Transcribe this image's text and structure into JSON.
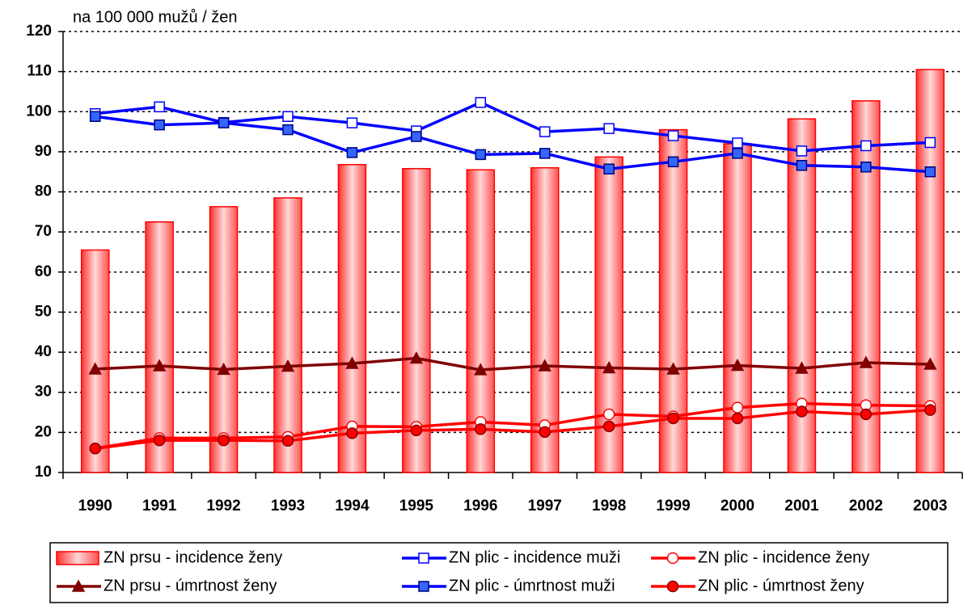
{
  "chart_data": {
    "type": "bar",
    "y_label": "na 100 000 mužů / žen",
    "categories": [
      "1990",
      "1991",
      "1992",
      "1993",
      "1994",
      "1995",
      "1996",
      "1997",
      "1998",
      "1999",
      "2000",
      "2001",
      "2002",
      "2003"
    ],
    "ylim": [
      10,
      120
    ],
    "yticks": [
      10,
      20,
      30,
      40,
      50,
      60,
      70,
      80,
      90,
      100,
      110,
      120
    ],
    "grid": true,
    "series": [
      {
        "name": "ZN prsu - incidence ženy",
        "type": "bar",
        "color": "#ff0000",
        "values": [
          65.5,
          72.5,
          76.3,
          78.5,
          86.8,
          85.8,
          85.5,
          86,
          88.7,
          95.5,
          92,
          98.2,
          102.7,
          110.5
        ]
      },
      {
        "name": "ZN plic - incidence muži",
        "type": "line",
        "color": "#0000ff",
        "marker": "square-open",
        "values": [
          99.5,
          101.2,
          97.3,
          98.8,
          97.2,
          95.2,
          102.3,
          95,
          95.8,
          94,
          92.2,
          90.2,
          91.5,
          92.3
        ]
      },
      {
        "name": "ZN plic - incidence ženy",
        "type": "line",
        "color": "#ff0000",
        "marker": "circle-open",
        "values": [
          16,
          18.6,
          18.6,
          18.9,
          21.5,
          21.4,
          22.6,
          21.8,
          24.5,
          24,
          26.2,
          27.2,
          26.8,
          26.6
        ]
      },
      {
        "name": "ZN prsu - úmrtnost ženy",
        "type": "line",
        "color": "#800000",
        "marker": "triangle",
        "values": [
          35.8,
          36.6,
          35.7,
          36.5,
          37.2,
          38.5,
          35.6,
          36.6,
          36.1,
          35.8,
          36.7,
          36.0,
          37.4,
          37.0
        ]
      },
      {
        "name": "ZN plic - úmrtnost muži",
        "type": "line",
        "color": "#0000ff",
        "marker": "square",
        "values": [
          98.8,
          96.7,
          97.2,
          95.5,
          89.8,
          93.8,
          89.3,
          89.6,
          85.7,
          87.5,
          89.6,
          86.6,
          86.2,
          85
        ]
      },
      {
        "name": "ZN plic - úmrtnost ženy",
        "type": "line",
        "color": "#ff0000",
        "marker": "circle",
        "values": [
          16,
          18,
          18,
          17.9,
          19.8,
          20.5,
          20.8,
          20.1,
          21.5,
          23.5,
          23.5,
          25.2,
          24.5,
          25.6
        ]
      }
    ]
  }
}
